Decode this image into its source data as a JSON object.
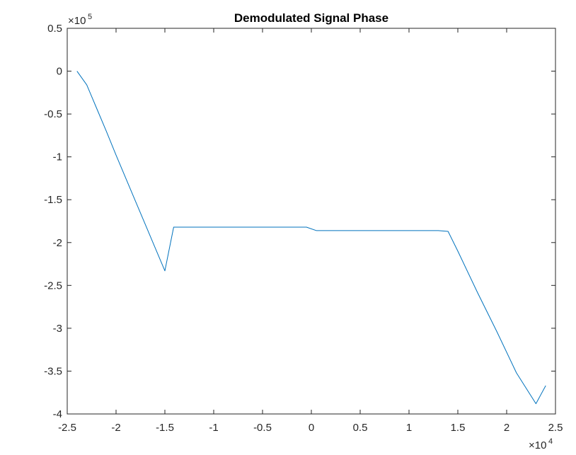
{
  "chart_data": {
    "type": "line",
    "title": "Demodulated Signal Phase",
    "xlabel": "",
    "ylabel": "",
    "xlim": [
      -2.5,
      2.5
    ],
    "ylim": [
      -4,
      0.5
    ],
    "x_ticks": [
      "-2.5",
      "-2",
      "-1.5",
      "-1",
      "-0.5",
      "0",
      "0.5",
      "1",
      "1.5",
      "2",
      "2.5"
    ],
    "y_ticks": [
      "0.5",
      "0",
      "-0.5",
      "-1",
      "-1.5",
      "-2",
      "-2.5",
      "-3",
      "-3.5",
      "-4"
    ],
    "x_multiplier": {
      "base": "×10",
      "exponent": "4"
    },
    "y_multiplier": {
      "base": "×10",
      "exponent": "5"
    },
    "grid": false,
    "line_color": "#0072BD",
    "series": [
      {
        "x": [
          -2.4,
          -2.3,
          -2.2,
          -2.1,
          -2.0,
          -1.9,
          -1.8,
          -1.7,
          -1.6,
          -1.5,
          -1.41,
          -1.3,
          -1.0,
          -0.5,
          -0.05,
          0.05,
          0.5,
          1.0,
          1.3,
          1.4,
          1.5,
          1.7,
          1.9,
          2.1,
          2.3,
          2.4
        ],
        "y": [
          0.0,
          -0.16,
          -0.43,
          -0.7,
          -0.98,
          -1.25,
          -1.52,
          -1.79,
          -2.06,
          -2.33,
          -1.82,
          -1.82,
          -1.82,
          -1.82,
          -1.82,
          -1.86,
          -1.86,
          -1.86,
          -1.86,
          -1.87,
          -2.1,
          -2.58,
          -3.04,
          -3.52,
          -3.88,
          -3.67
        ]
      }
    ]
  }
}
